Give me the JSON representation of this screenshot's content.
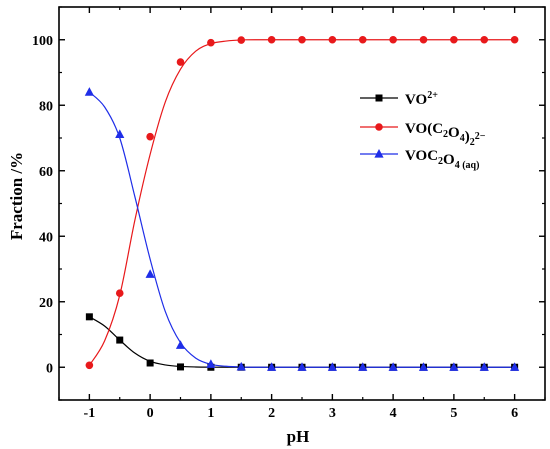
{
  "chart_data": {
    "type": "line",
    "title": "",
    "xlabel": "pH",
    "ylabel": "Fraction /%",
    "xlim": [
      -1.5,
      6.5
    ],
    "ylim": [
      -10,
      110
    ],
    "xticks": [
      -1,
      0,
      1,
      2,
      3,
      4,
      5,
      6
    ],
    "xtick_labels": [
      "-1",
      "0",
      "1",
      "2",
      "3",
      "4",
      "5",
      "6"
    ],
    "yticks": [
      0,
      20,
      40,
      60,
      80,
      100
    ],
    "ytick_labels": [
      "0",
      "20",
      "40",
      "60",
      "80",
      "100"
    ],
    "grid": false,
    "legend_position": "right",
    "x": [
      -1,
      -0.5,
      0,
      0.5,
      1,
      1.5,
      2,
      2.5,
      3,
      3.5,
      4,
      4.5,
      5,
      5.5,
      6
    ],
    "series": [
      {
        "name": "VO2+",
        "name_parts": [
          {
            "t": "VO"
          },
          {
            "t": "2+",
            "pos": "sup"
          }
        ],
        "color": "#000000",
        "marker": "square",
        "values": [
          15.4,
          8.3,
          1.3,
          0.1,
          0,
          0,
          0,
          0,
          0,
          0,
          0,
          0,
          0,
          0,
          0
        ],
        "fit": [
          [
            -1,
            15.4
          ],
          [
            -0.75,
            12.6
          ],
          [
            -0.5,
            8.3
          ],
          [
            -0.25,
            4.3
          ],
          [
            0,
            1.8
          ],
          [
            0.25,
            0.7
          ],
          [
            0.5,
            0.25
          ],
          [
            0.75,
            0.08
          ],
          [
            1,
            0.03
          ],
          [
            1.5,
            0
          ],
          [
            6,
            0
          ]
        ]
      },
      {
        "name": "VO(C2O4)2 2−",
        "name_parts": [
          {
            "t": "VO(C"
          },
          {
            "t": "2",
            "pos": "sub"
          },
          {
            "t": "O"
          },
          {
            "t": "4",
            "pos": "sub"
          },
          {
            "t": ")"
          },
          {
            "t": "2",
            "pos": "sub"
          },
          {
            "t": "2−",
            "pos": "sup"
          }
        ],
        "color": "#e8191b",
        "marker": "circle",
        "values": [
          0.6,
          22.6,
          70.4,
          93.2,
          99.1,
          99.9,
          100,
          100,
          100,
          100,
          100,
          100,
          100,
          100,
          100
        ],
        "fit": [
          [
            -1,
            0.6
          ],
          [
            -0.75,
            8
          ],
          [
            -0.5,
            22
          ],
          [
            -0.25,
            45
          ],
          [
            0,
            65
          ],
          [
            0.25,
            81
          ],
          [
            0.5,
            91
          ],
          [
            0.75,
            96.5
          ],
          [
            1,
            98.8
          ],
          [
            1.25,
            99.6
          ],
          [
            1.5,
            99.9
          ],
          [
            2,
            100
          ],
          [
            6,
            100
          ]
        ]
      },
      {
        "name": "VOC2O4 (aq)",
        "name_parts": [
          {
            "t": "VOC"
          },
          {
            "t": "2",
            "pos": "sub"
          },
          {
            "t": "O"
          },
          {
            "t": "4 (aq)",
            "pos": "sub"
          }
        ],
        "color": "#1f2ee8",
        "marker": "triangle",
        "values": [
          84.0,
          71.1,
          28.4,
          6.7,
          0.9,
          0.1,
          0,
          0,
          0,
          0,
          0,
          0,
          0,
          0,
          0
        ],
        "fit": [
          [
            -1,
            84
          ],
          [
            -0.75,
            79.5
          ],
          [
            -0.5,
            70
          ],
          [
            -0.25,
            52
          ],
          [
            0,
            33
          ],
          [
            0.25,
            17
          ],
          [
            0.5,
            7.5
          ],
          [
            0.75,
            2.8
          ],
          [
            1,
            0.9
          ],
          [
            1.25,
            0.3
          ],
          [
            1.5,
            0.1
          ],
          [
            2,
            0
          ],
          [
            6,
            0
          ]
        ]
      }
    ]
  }
}
